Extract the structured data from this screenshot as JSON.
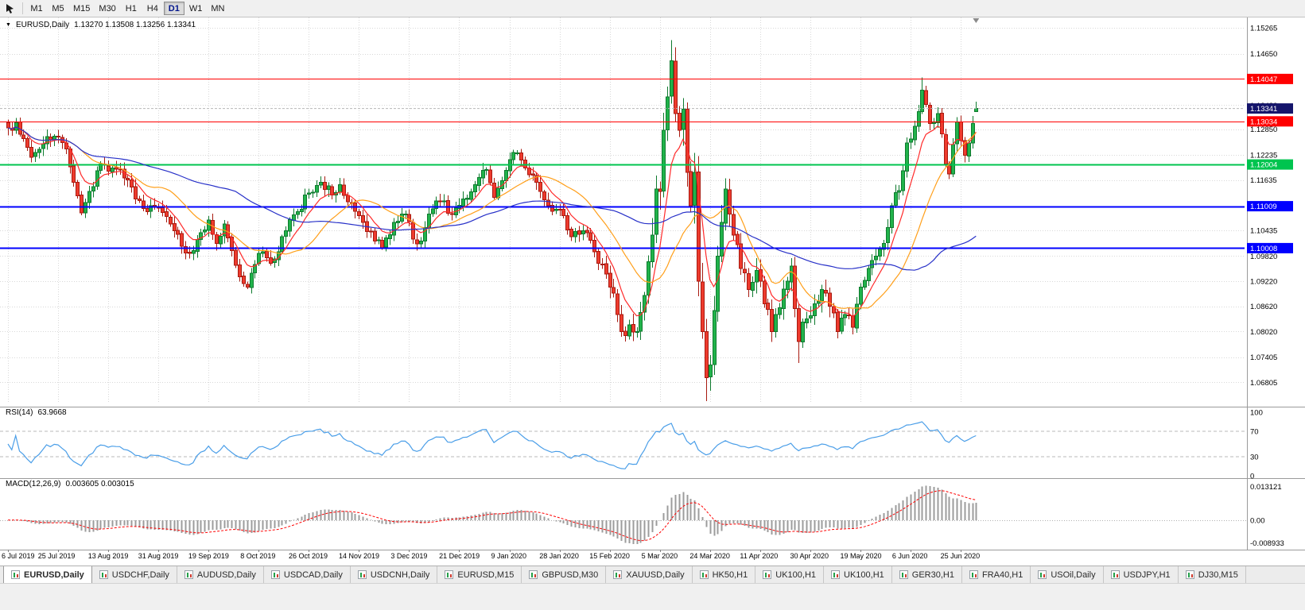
{
  "toolbar": {
    "timeframes": [
      "M1",
      "M5",
      "M15",
      "M30",
      "H1",
      "H4",
      "D1",
      "W1",
      "MN"
    ],
    "selected": "D1"
  },
  "chart": {
    "title": "EURUSD,Daily",
    "ohlc_text": "1.13270 1.13508 1.13256 1.13341"
  },
  "colors": {
    "candle_up": "#21b34b",
    "candle_up_border": "#0e7a2e",
    "candle_down": "#ee3b2e",
    "candle_down_border": "#a81a10",
    "ma_fast": "#ff2a2a",
    "ma_mid": "#ff9f1a",
    "ma_slow": "#2730c8",
    "rsi_line": "#4a9ee8",
    "macd_hist": "#9c9c9c",
    "macd_signal": "#ff0000",
    "current_tag": "#15156b",
    "grid": "#d8d8d8",
    "axis_text": "#000000"
  },
  "chart_data": {
    "type": "candlestick",
    "symbol": "EURUSD",
    "period": "Daily",
    "ohlc_current": {
      "open": 1.1327,
      "high": 1.13508,
      "low": 1.13256,
      "close": 1.13341
    },
    "current_price": 1.13341,
    "price_range": {
      "min": 1.063,
      "max": 1.154
    },
    "candle_count": 252,
    "label_step": 13,
    "date_labels": [
      "6 Jul 2019",
      "25 Jul 2019",
      "13 Aug 2019",
      "31 Aug 2019",
      "19 Sep 2019",
      "8 Oct 2019",
      "26 Oct 2019",
      "14 Nov 2019",
      "3 Dec 2019",
      "21 Dec 2019",
      "9 Jan 2020",
      "28 Jan 2020",
      "15 Feb 2020",
      "5 Mar 2020",
      "24 Mar 2020",
      "11 Apr 2020",
      "30 Apr 2020",
      "19 May 2020",
      "6 Jun 2020",
      "25 Jun 2020"
    ],
    "axis_labels": [
      "1.15265",
      "1.14650",
      "1.13420",
      "1.12850",
      "1.12235",
      "1.11635",
      "1.10435",
      "1.09820",
      "1.09220",
      "1.08620",
      "1.08020",
      "1.07405",
      "1.06805"
    ],
    "horizontal_lines": [
      {
        "price": 1.14047,
        "color": "#ff0000",
        "width": 1
      },
      {
        "price": 1.13034,
        "color": "#ff0000",
        "width": 1
      },
      {
        "price": 1.12004,
        "color": "#00c44f",
        "width": 2
      },
      {
        "price": 1.11009,
        "color": "#0000ff",
        "width": 2
      },
      {
        "price": 1.10008,
        "color": "#0000ff",
        "width": 2
      }
    ],
    "moving_averages": [
      {
        "name": "fast",
        "method": "ema",
        "period": 8,
        "color": "#ff2a2a"
      },
      {
        "name": "mid",
        "method": "sma",
        "period": 20,
        "color": "#ff9f1a"
      },
      {
        "name": "slow",
        "method": "sma",
        "period": 60,
        "color": "#2730c8"
      }
    ],
    "close_anchors": [
      [
        0,
        1.1288
      ],
      [
        2,
        1.13
      ],
      [
        4,
        1.1262
      ],
      [
        6,
        1.1218
      ],
      [
        9,
        1.125
      ],
      [
        12,
        1.1268
      ],
      [
        15,
        1.1238
      ],
      [
        17,
        1.1158
      ],
      [
        19,
        1.1085
      ],
      [
        22,
        1.1148
      ],
      [
        24,
        1.1202
      ],
      [
        27,
        1.1192
      ],
      [
        30,
        1.1168
      ],
      [
        33,
        1.1118
      ],
      [
        36,
        1.1088
      ],
      [
        39,
        1.1098
      ],
      [
        42,
        1.1058
      ],
      [
        45,
        1.1005
      ],
      [
        47,
        1.0988
      ],
      [
        50,
        1.1038
      ],
      [
        52,
        1.1068
      ],
      [
        54,
        1.1012
      ],
      [
        56,
        1.1058
      ],
      [
        58,
        1.0995
      ],
      [
        60,
        1.0932
      ],
      [
        62,
        1.0908
      ],
      [
        64,
        1.0962
      ],
      [
        66,
        1.0992
      ],
      [
        68,
        1.0965
      ],
      [
        70,
        1.0992
      ],
      [
        72,
        1.1042
      ],
      [
        75,
        1.1088
      ],
      [
        78,
        1.1132
      ],
      [
        81,
        1.1158
      ],
      [
        84,
        1.1128
      ],
      [
        86,
        1.1152
      ],
      [
        89,
        1.1108
      ],
      [
        92,
        1.1062
      ],
      [
        95,
        1.1018
      ],
      [
        97,
        1.1002
      ],
      [
        100,
        1.1062
      ],
      [
        103,
        1.1082
      ],
      [
        105,
        1.1022
      ],
      [
        107,
        1.1018
      ],
      [
        109,
        1.1082
      ],
      [
        112,
        1.1112
      ],
      [
        115,
        1.1082
      ],
      [
        118,
        1.1118
      ],
      [
        121,
        1.1152
      ],
      [
        124,
        1.1188
      ],
      [
        126,
        1.1122
      ],
      [
        128,
        1.1162
      ],
      [
        130,
        1.1212
      ],
      [
        132,
        1.1228
      ],
      [
        134,
        1.1192
      ],
      [
        137,
        1.1158
      ],
      [
        140,
        1.1102
      ],
      [
        143,
        1.1092
      ],
      [
        146,
        1.1028
      ],
      [
        149,
        1.1042
      ],
      [
        152,
        1.0992
      ],
      [
        154,
        1.0962
      ],
      [
        156,
        1.0908
      ],
      [
        158,
        1.0842
      ],
      [
        160,
        1.0792
      ],
      [
        161,
        1.0818
      ],
      [
        163,
        1.0802
      ],
      [
        165,
        1.0888
      ],
      [
        166,
        1.0968
      ],
      [
        167,
        1.1032
      ],
      [
        168,
        1.1142
      ],
      [
        169,
        1.1136
      ],
      [
        170,
        1.1282
      ],
      [
        171,
        1.1362
      ],
      [
        172,
        1.1448
      ],
      [
        173,
        1.1322
      ],
      [
        174,
        1.1282
      ],
      [
        175,
        1.1332
      ],
      [
        176,
        1.1182
      ],
      [
        177,
        1.1102
      ],
      [
        178,
        1.1182
      ],
      [
        179,
        1.0922
      ],
      [
        180,
        1.0802
      ],
      [
        181,
        1.0692
      ],
      [
        182,
        1.0722
      ],
      [
        183,
        1.0852
      ],
      [
        184,
        1.0982
      ],
      [
        185,
        1.1062
      ],
      [
        186,
        1.1142
      ],
      [
        187,
        1.1082
      ],
      [
        188,
        1.1032
      ],
      [
        190,
        1.0952
      ],
      [
        192,
        1.0902
      ],
      [
        194,
        1.0948
      ],
      [
        196,
        1.0868
      ],
      [
        198,
        1.0802
      ],
      [
        200,
        1.0858
      ],
      [
        202,
        1.0922
      ],
      [
        203,
        1.0958
      ],
      [
        205,
        1.0778
      ],
      [
        207,
        1.0832
      ],
      [
        209,
        1.0868
      ],
      [
        211,
        1.0902
      ],
      [
        213,
        1.0862
      ],
      [
        215,
        1.0802
      ],
      [
        217,
        1.0842
      ],
      [
        219,
        1.0812
      ],
      [
        221,
        1.0908
      ],
      [
        223,
        1.0952
      ],
      [
        225,
        1.0982
      ],
      [
        227,
        1.1012
      ],
      [
        229,
        1.1102
      ],
      [
        231,
        1.1138
      ],
      [
        233,
        1.1252
      ],
      [
        235,
        1.1292
      ],
      [
        237,
        1.1378
      ],
      [
        239,
        1.1298
      ],
      [
        241,
        1.1322
      ],
      [
        243,
        1.1202
      ],
      [
        244,
        1.1178
      ],
      [
        245,
        1.1248
      ],
      [
        246,
        1.1302
      ],
      [
        247,
        1.1258
      ],
      [
        248,
        1.1222
      ],
      [
        249,
        1.1252
      ],
      [
        250,
        1.1298
      ],
      [
        251,
        1.1334
      ]
    ],
    "wick_overrides": [
      {
        "i": 160,
        "low": 1.0778
      },
      {
        "i": 172,
        "high": 1.1497
      },
      {
        "i": 181,
        "low": 1.0636
      },
      {
        "i": 205,
        "low": 1.0727
      },
      {
        "i": 237,
        "high": 1.1408
      }
    ],
    "volatility_zones": [
      {
        "from": 155,
        "to": 165,
        "mult": 1.5
      },
      {
        "from": 166,
        "to": 186,
        "mult": 2.6
      },
      {
        "from": 187,
        "to": 214,
        "mult": 1.6
      },
      {
        "from": 215,
        "to": 232,
        "mult": 1.15
      }
    ],
    "indicators": {
      "rsi": {
        "label": "RSI(14)",
        "value": "63.9668",
        "period": 14,
        "levels": [
          70,
          30
        ],
        "scale_labels": [
          "100",
          "70",
          "30",
          "0"
        ],
        "color": "#4a9ee8"
      },
      "macd": {
        "label": "MACD(12,26,9)",
        "values": "0.003605 0.003015",
        "fast": 12,
        "slow": 26,
        "signal": 9,
        "scale_max": 0.013121,
        "scale_min": -0.008933,
        "scale_labels": [
          "0.013121",
          "0.00",
          "-0.008933"
        ]
      }
    }
  },
  "tabs": {
    "active_index": 0,
    "items": [
      "EURUSD,Daily",
      "USDCHF,Daily",
      "AUDUSD,Daily",
      "USDCAD,Daily",
      "USDCNH,Daily",
      "EURUSD,M15",
      "GBPUSD,M30",
      "XAUUSD,Daily",
      "HK50,H1",
      "UK100,H1",
      "UK100,H1",
      "GER30,H1",
      "FRA40,H1",
      "USOil,Daily",
      "USDJPY,H1",
      "DJ30,M15"
    ]
  }
}
